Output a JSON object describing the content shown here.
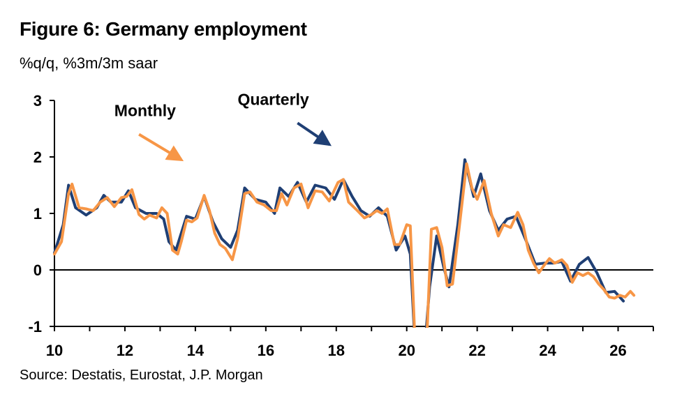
{
  "title": "Figure 6: Germany employment",
  "subtitle": "%q/q, %3m/3m saar",
  "source": "Source: Destatis, Eurostat, J.P. Morgan",
  "chart_data": {
    "type": "line",
    "xlim": [
      2010,
      2027
    ],
    "ylim": [
      -1,
      3
    ],
    "x_ticks": [
      10,
      12,
      14,
      16,
      18,
      20,
      22,
      24,
      26
    ],
    "y_ticks": [
      3,
      2,
      1,
      0,
      -1
    ],
    "grid": false,
    "legend": "none",
    "annotations": [
      {
        "text": "Monthly",
        "color": "#F79646",
        "at": [
          2011.7,
          2.72
        ],
        "arrow_from": [
          2012.4,
          2.4
        ],
        "arrow_to": [
          2013.6,
          1.95
        ]
      },
      {
        "text": "Quarterly",
        "color": "#1F3F74",
        "at": [
          2015.2,
          2.92
        ],
        "arrow_from": [
          2016.9,
          2.6
        ],
        "arrow_to": [
          2017.8,
          2.22
        ]
      }
    ],
    "series": [
      {
        "color": "#1F3F74",
        "points": [
          [
            2010.0,
            0.3
          ],
          [
            2010.25,
            0.8
          ],
          [
            2010.4,
            1.5
          ],
          [
            2010.6,
            1.1
          ],
          [
            2010.9,
            0.97
          ],
          [
            2011.2,
            1.1
          ],
          [
            2011.4,
            1.32
          ],
          [
            2011.6,
            1.2
          ],
          [
            2011.9,
            1.2
          ],
          [
            2012.1,
            1.4
          ],
          [
            2012.3,
            1.1
          ],
          [
            2012.6,
            1.0
          ],
          [
            2012.9,
            1.0
          ],
          [
            2013.1,
            0.9
          ],
          [
            2013.25,
            0.5
          ],
          [
            2013.45,
            0.35
          ],
          [
            2013.75,
            0.95
          ],
          [
            2014.0,
            0.9
          ],
          [
            2014.25,
            1.3
          ],
          [
            2014.5,
            0.85
          ],
          [
            2014.75,
            0.55
          ],
          [
            2015.0,
            0.4
          ],
          [
            2015.2,
            0.7
          ],
          [
            2015.4,
            1.45
          ],
          [
            2015.7,
            1.25
          ],
          [
            2016.0,
            1.2
          ],
          [
            2016.25,
            1.0
          ],
          [
            2016.4,
            1.45
          ],
          [
            2016.65,
            1.3
          ],
          [
            2016.9,
            1.55
          ],
          [
            2017.15,
            1.2
          ],
          [
            2017.4,
            1.5
          ],
          [
            2017.7,
            1.45
          ],
          [
            2017.95,
            1.25
          ],
          [
            2018.2,
            1.6
          ],
          [
            2018.45,
            1.3
          ],
          [
            2018.7,
            1.05
          ],
          [
            2018.95,
            0.95
          ],
          [
            2019.2,
            1.1
          ],
          [
            2019.45,
            0.95
          ],
          [
            2019.7,
            0.35
          ],
          [
            2019.95,
            0.6
          ],
          [
            2020.1,
            0.28
          ],
          [
            2020.25,
            -1.5
          ],
          [
            2020.5,
            -1.5
          ],
          [
            2020.65,
            -0.3
          ],
          [
            2020.85,
            0.6
          ],
          [
            2021.05,
            0.05
          ],
          [
            2021.2,
            -0.3
          ],
          [
            2021.45,
            0.8
          ],
          [
            2021.65,
            1.95
          ],
          [
            2021.9,
            1.3
          ],
          [
            2022.1,
            1.7
          ],
          [
            2022.35,
            1.05
          ],
          [
            2022.6,
            0.7
          ],
          [
            2022.85,
            0.9
          ],
          [
            2023.1,
            0.95
          ],
          [
            2023.4,
            0.5
          ],
          [
            2023.65,
            0.1
          ],
          [
            2023.9,
            0.12
          ],
          [
            2024.15,
            0.12
          ],
          [
            2024.4,
            0.15
          ],
          [
            2024.65,
            -0.2
          ],
          [
            2024.9,
            0.1
          ],
          [
            2025.15,
            0.22
          ],
          [
            2025.4,
            -0.05
          ],
          [
            2025.65,
            -0.4
          ],
          [
            2025.9,
            -0.38
          ],
          [
            2026.15,
            -0.55
          ]
        ]
      },
      {
        "color": "#F79646",
        "points": [
          [
            2010.0,
            0.28
          ],
          [
            2010.2,
            0.5
          ],
          [
            2010.4,
            1.35
          ],
          [
            2010.5,
            1.52
          ],
          [
            2010.7,
            1.1
          ],
          [
            2010.9,
            1.08
          ],
          [
            2011.1,
            1.05
          ],
          [
            2011.3,
            1.2
          ],
          [
            2011.5,
            1.28
          ],
          [
            2011.7,
            1.12
          ],
          [
            2011.9,
            1.28
          ],
          [
            2012.05,
            1.3
          ],
          [
            2012.2,
            1.42
          ],
          [
            2012.4,
            0.98
          ],
          [
            2012.55,
            0.9
          ],
          [
            2012.7,
            0.97
          ],
          [
            2012.9,
            0.92
          ],
          [
            2013.05,
            1.1
          ],
          [
            2013.2,
            1.0
          ],
          [
            2013.35,
            0.35
          ],
          [
            2013.5,
            0.28
          ],
          [
            2013.6,
            0.5
          ],
          [
            2013.75,
            0.88
          ],
          [
            2013.9,
            0.85
          ],
          [
            2014.05,
            0.92
          ],
          [
            2014.25,
            1.32
          ],
          [
            2014.4,
            1.05
          ],
          [
            2014.55,
            0.65
          ],
          [
            2014.7,
            0.45
          ],
          [
            2014.85,
            0.38
          ],
          [
            2015.05,
            0.18
          ],
          [
            2015.2,
            0.55
          ],
          [
            2015.4,
            1.35
          ],
          [
            2015.55,
            1.38
          ],
          [
            2015.75,
            1.2
          ],
          [
            2015.95,
            1.15
          ],
          [
            2016.15,
            1.05
          ],
          [
            2016.3,
            1.05
          ],
          [
            2016.45,
            1.35
          ],
          [
            2016.6,
            1.15
          ],
          [
            2016.8,
            1.45
          ],
          [
            2017.0,
            1.52
          ],
          [
            2017.2,
            1.1
          ],
          [
            2017.4,
            1.4
          ],
          [
            2017.6,
            1.38
          ],
          [
            2017.8,
            1.22
          ],
          [
            2018.05,
            1.55
          ],
          [
            2018.2,
            1.6
          ],
          [
            2018.35,
            1.2
          ],
          [
            2018.6,
            1.05
          ],
          [
            2018.8,
            0.92
          ],
          [
            2019.0,
            0.98
          ],
          [
            2019.15,
            1.05
          ],
          [
            2019.3,
            1.0
          ],
          [
            2019.45,
            1.08
          ],
          [
            2019.65,
            0.45
          ],
          [
            2019.8,
            0.45
          ],
          [
            2020.0,
            0.8
          ],
          [
            2020.1,
            0.78
          ],
          [
            2020.25,
            -1.5
          ],
          [
            2020.55,
            -1.5
          ],
          [
            2020.7,
            0.72
          ],
          [
            2020.85,
            0.75
          ],
          [
            2021.0,
            0.4
          ],
          [
            2021.15,
            -0.28
          ],
          [
            2021.3,
            -0.25
          ],
          [
            2021.5,
            0.8
          ],
          [
            2021.7,
            1.88
          ],
          [
            2021.85,
            1.45
          ],
          [
            2022.0,
            1.25
          ],
          [
            2022.2,
            1.58
          ],
          [
            2022.4,
            1.0
          ],
          [
            2022.6,
            0.6
          ],
          [
            2022.75,
            0.8
          ],
          [
            2022.95,
            0.75
          ],
          [
            2023.15,
            1.02
          ],
          [
            2023.3,
            0.8
          ],
          [
            2023.45,
            0.35
          ],
          [
            2023.6,
            0.12
          ],
          [
            2023.75,
            -0.05
          ],
          [
            2023.9,
            0.08
          ],
          [
            2024.05,
            0.2
          ],
          [
            2024.2,
            0.12
          ],
          [
            2024.4,
            0.18
          ],
          [
            2024.55,
            0.08
          ],
          [
            2024.7,
            -0.22
          ],
          [
            2024.85,
            -0.05
          ],
          [
            2025.0,
            -0.1
          ],
          [
            2025.15,
            -0.05
          ],
          [
            2025.3,
            -0.12
          ],
          [
            2025.45,
            -0.25
          ],
          [
            2025.6,
            -0.35
          ],
          [
            2025.75,
            -0.48
          ],
          [
            2025.9,
            -0.5
          ],
          [
            2026.05,
            -0.45
          ],
          [
            2026.2,
            -0.48
          ],
          [
            2026.35,
            -0.38
          ],
          [
            2026.45,
            -0.45
          ]
        ]
      }
    ]
  }
}
